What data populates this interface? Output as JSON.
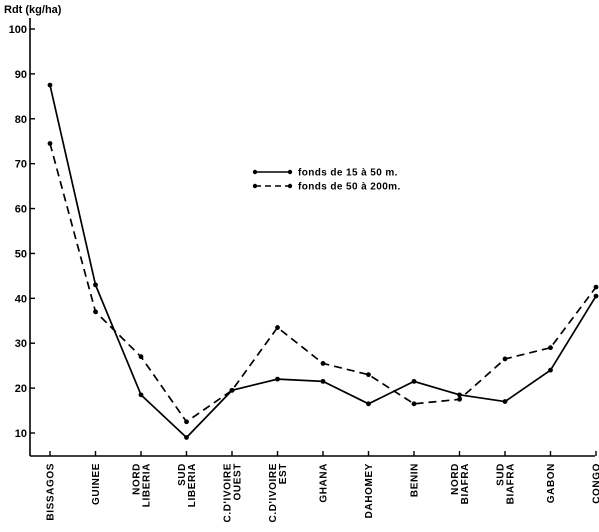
{
  "chart_data": {
    "type": "line",
    "ylabel": "Rdt (kg/ha)",
    "ylim": [
      5,
      100
    ],
    "yticks": [
      10,
      20,
      30,
      40,
      50,
      60,
      70,
      80,
      90,
      100
    ],
    "categories": [
      "BISSAGOS",
      "GUINEE",
      "NORD LIBERIA",
      "SUD LIBERIA",
      "C.D'IVOIRE OUEST",
      "C.D'IVOIRE EST",
      "GHANA",
      "DAHOMEY",
      "BENIN",
      "NORD BIAFRA",
      "SUD BIAFRA",
      "GABON",
      "CONGO"
    ],
    "category_lines": [
      [
        "BISSAGOS"
      ],
      [
        "GUINEE"
      ],
      [
        "NORD",
        "LIBERIA"
      ],
      [
        "SUD",
        "LIBERIA"
      ],
      [
        "C.D'IVOIRE",
        "OUEST"
      ],
      [
        "C.D'IVOIRE",
        "EST"
      ],
      [
        "GHANA"
      ],
      [
        "DAHOMEY"
      ],
      [
        "BENIN"
      ],
      [
        "NORD",
        "BIAFRA"
      ],
      [
        "SUD",
        "BIAFRA"
      ],
      [
        "GABON"
      ],
      [
        "CONGO"
      ]
    ],
    "series": [
      {
        "name": "fonds de 15 à 50 m.",
        "style": "solid",
        "color": "#000000",
        "values": [
          87.5,
          43,
          18.5,
          9,
          19.5,
          22,
          21.5,
          16.5,
          21.5,
          18.5,
          17,
          24,
          40.5
        ]
      },
      {
        "name": "fonds de 50 à 200m.",
        "style": "dashed",
        "color": "#000000",
        "values": [
          74.5,
          37,
          27,
          12.5,
          19.5,
          33.5,
          25.5,
          23,
          16.5,
          17.5,
          26.5,
          29,
          42.5
        ]
      }
    ],
    "grid": false,
    "legend_position": "center-right"
  }
}
